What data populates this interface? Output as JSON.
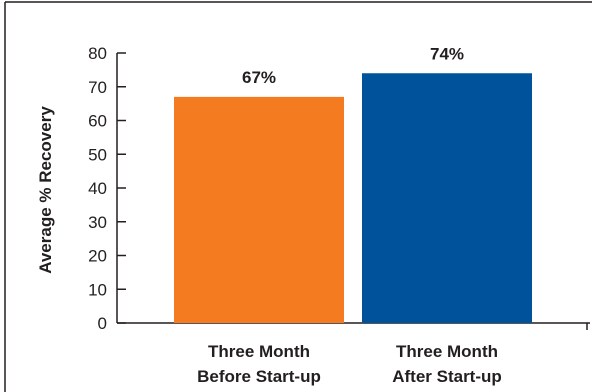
{
  "chart_data": {
    "type": "bar",
    "categories": [
      [
        "Three Month",
        "Before Start-up"
      ],
      [
        "Three Month",
        "After Start-up"
      ]
    ],
    "values": [
      67,
      74
    ],
    "data_labels": [
      "67%",
      "74%"
    ],
    "bar_colors": [
      "#f47b20",
      "#00529b"
    ],
    "ylabel": "Average % Recovery",
    "ylim": [
      0,
      80
    ],
    "yticks": [
      0,
      10,
      20,
      30,
      40,
      50,
      60,
      70,
      80
    ],
    "grid": false,
    "legend": "none"
  }
}
